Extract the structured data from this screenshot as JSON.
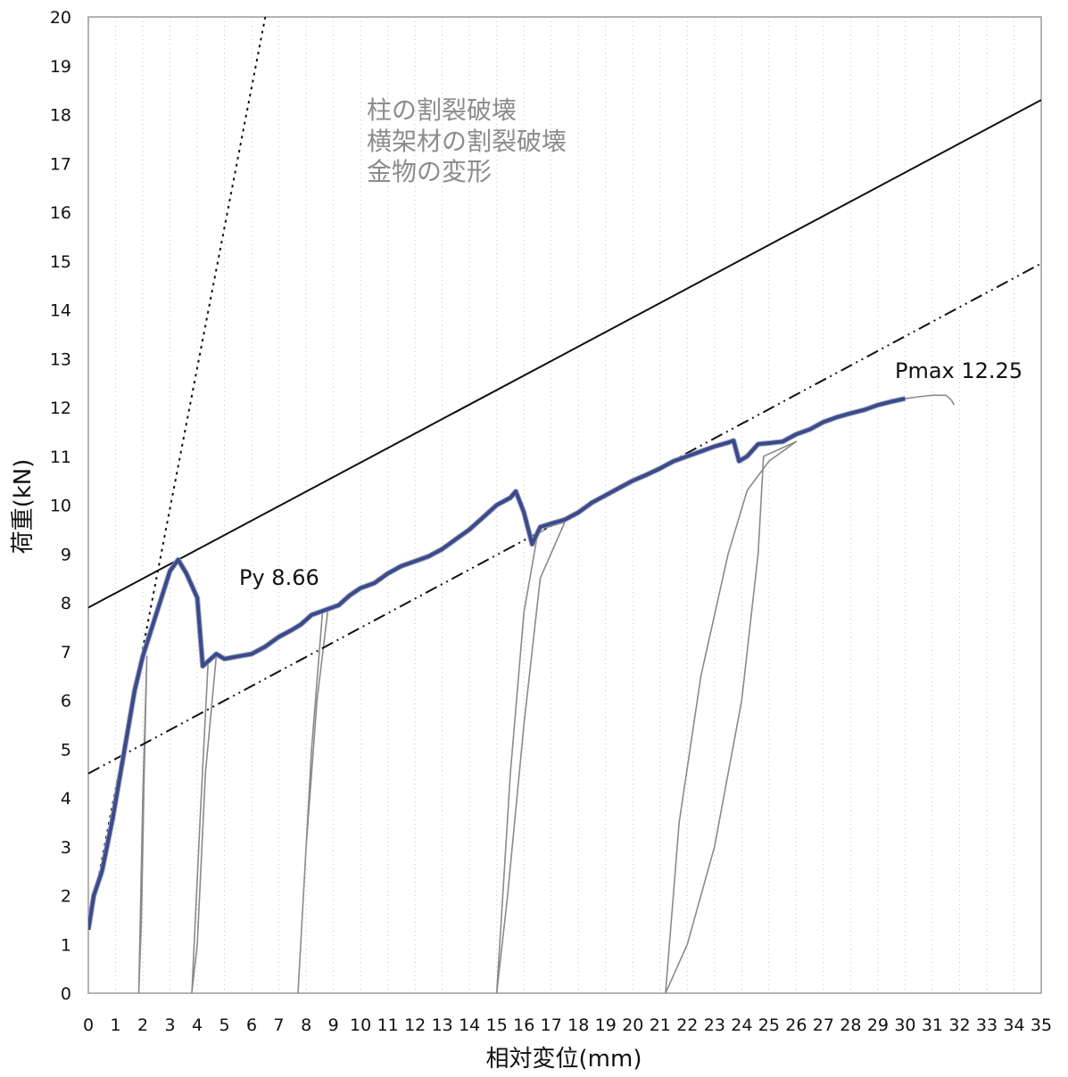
{
  "chart_data": {
    "type": "line",
    "title": "",
    "xlabel": "相対変位(mm)",
    "ylabel": "荷重(kN)",
    "xlim": [
      0,
      35
    ],
    "ylim": [
      0,
      20
    ],
    "x_ticks": [
      "0",
      "1",
      "2",
      "3",
      "4",
      "5",
      "6",
      "7",
      "8",
      "9",
      "10",
      "11",
      "12",
      "13",
      "14",
      "15",
      "16",
      "17",
      "18",
      "19",
      "20",
      "21",
      "22",
      "23",
      "24",
      "25",
      "26",
      "27",
      "28",
      "29",
      "30",
      "31",
      "32",
      "33",
      "34",
      "35"
    ],
    "y_ticks": [
      "0",
      "1",
      "2",
      "3",
      "4",
      "5",
      "6",
      "7",
      "8",
      "9",
      "10",
      "11",
      "12",
      "13",
      "14",
      "15",
      "16",
      "17",
      "18",
      "19",
      "20"
    ],
    "grid": {
      "vertical": true,
      "horizontal": false,
      "style": "dotted"
    },
    "annotations": {
      "py_label": "Py 8.66",
      "pmax_label": "Pmax 12.25",
      "failure_modes": [
        "柱の割裂破壊",
        "横架材の割裂破壊",
        "金物の変形"
      ]
    },
    "series": [
      {
        "role": "envelope",
        "color": "#3a4a8c",
        "points": [
          [
            0,
            1.3
          ],
          [
            0.2,
            2.0
          ],
          [
            0.5,
            2.5
          ],
          [
            0.9,
            3.6
          ],
          [
            1.3,
            4.9
          ],
          [
            1.7,
            6.2
          ],
          [
            2.0,
            6.9
          ],
          [
            2.4,
            7.6
          ],
          [
            2.8,
            8.3
          ],
          [
            3.0,
            8.65
          ],
          [
            3.3,
            8.88
          ],
          [
            3.6,
            8.6
          ],
          [
            4.0,
            8.1
          ],
          [
            4.2,
            6.7
          ],
          [
            4.5,
            6.85
          ],
          [
            4.7,
            6.95
          ],
          [
            5.0,
            6.85
          ],
          [
            5.5,
            6.9
          ],
          [
            6.0,
            6.95
          ],
          [
            6.5,
            7.1
          ],
          [
            7.0,
            7.3
          ],
          [
            7.5,
            7.45
          ],
          [
            7.8,
            7.55
          ],
          [
            8.2,
            7.75
          ],
          [
            8.7,
            7.85
          ],
          [
            9.2,
            7.95
          ],
          [
            9.6,
            8.15
          ],
          [
            10.0,
            8.3
          ],
          [
            10.5,
            8.4
          ],
          [
            11.0,
            8.6
          ],
          [
            11.5,
            8.75
          ],
          [
            12.0,
            8.85
          ],
          [
            12.5,
            8.95
          ],
          [
            13.0,
            9.1
          ],
          [
            13.5,
            9.3
          ],
          [
            14.0,
            9.5
          ],
          [
            14.5,
            9.75
          ],
          [
            15.0,
            10.0
          ],
          [
            15.5,
            10.15
          ],
          [
            15.7,
            10.28
          ],
          [
            16.0,
            9.85
          ],
          [
            16.3,
            9.2
          ],
          [
            16.6,
            9.55
          ],
          [
            17.0,
            9.62
          ],
          [
            17.5,
            9.7
          ],
          [
            18.0,
            9.85
          ],
          [
            18.5,
            10.05
          ],
          [
            19.0,
            10.2
          ],
          [
            19.5,
            10.35
          ],
          [
            20.0,
            10.5
          ],
          [
            20.5,
            10.62
          ],
          [
            21.0,
            10.75
          ],
          [
            21.5,
            10.9
          ],
          [
            22.0,
            11.0
          ],
          [
            22.5,
            11.1
          ],
          [
            23.0,
            11.2
          ],
          [
            23.5,
            11.28
          ],
          [
            23.7,
            11.32
          ],
          [
            23.9,
            10.9
          ],
          [
            24.2,
            11.0
          ],
          [
            24.6,
            11.25
          ],
          [
            25.0,
            11.27
          ],
          [
            25.5,
            11.3
          ],
          [
            26.0,
            11.45
          ],
          [
            26.5,
            11.55
          ],
          [
            27.0,
            11.7
          ],
          [
            27.5,
            11.8
          ],
          [
            28.0,
            11.88
          ],
          [
            28.5,
            11.95
          ],
          [
            29.0,
            12.05
          ],
          [
            29.5,
            12.12
          ],
          [
            30.0,
            12.18
          ]
        ]
      },
      {
        "role": "raw-curve-tail",
        "color": "#8a8a8a",
        "points": [
          [
            30.0,
            12.18
          ],
          [
            30.5,
            12.22
          ],
          [
            31.0,
            12.25
          ],
          [
            31.5,
            12.25
          ],
          [
            31.7,
            12.15
          ],
          [
            31.8,
            12.05
          ]
        ]
      },
      {
        "role": "reload-1",
        "color": "#8a8a8a",
        "points": [
          [
            1.85,
            0
          ],
          [
            2.0,
            4.0
          ],
          [
            2.15,
            6.9
          ],
          [
            2.05,
            4.5
          ],
          [
            1.95,
            1.5
          ],
          [
            1.85,
            0
          ]
        ]
      },
      {
        "role": "reload-2",
        "color": "#8a8a8a",
        "points": [
          [
            3.8,
            0
          ],
          [
            4.1,
            3.5
          ],
          [
            4.4,
            6.8
          ],
          [
            4.7,
            6.9
          ],
          [
            4.3,
            4.5
          ],
          [
            4.0,
            1.0
          ],
          [
            3.8,
            0
          ]
        ]
      },
      {
        "role": "reload-3",
        "color": "#8a8a8a",
        "points": [
          [
            7.7,
            0
          ],
          [
            8.2,
            5.0
          ],
          [
            8.6,
            7.8
          ],
          [
            8.8,
            7.85
          ],
          [
            8.4,
            6.0
          ],
          [
            8.0,
            3.0
          ],
          [
            7.7,
            0
          ]
        ]
      },
      {
        "role": "reload-4",
        "color": "#8a8a8a",
        "points": [
          [
            15.0,
            0
          ],
          [
            15.5,
            4.5
          ],
          [
            16.0,
            7.8
          ],
          [
            16.5,
            9.4
          ],
          [
            16.9,
            9.55
          ],
          [
            17.5,
            9.65
          ],
          [
            16.6,
            8.5
          ],
          [
            16.0,
            5.5
          ],
          [
            15.4,
            2.0
          ],
          [
            15.0,
            0
          ]
        ]
      },
      {
        "role": "reload-5",
        "color": "#8a8a8a",
        "points": [
          [
            21.2,
            0
          ],
          [
            21.7,
            3.5
          ],
          [
            22.5,
            6.5
          ],
          [
            23.5,
            9.0
          ],
          [
            24.2,
            10.3
          ],
          [
            25.0,
            10.9
          ],
          [
            25.5,
            11.1
          ],
          [
            26.0,
            11.3
          ],
          [
            24.8,
            11.0
          ],
          [
            24.6,
            9.0
          ],
          [
            24.0,
            6.0
          ],
          [
            23.0,
            3.0
          ],
          [
            22.0,
            1.0
          ],
          [
            21.2,
            0
          ]
        ]
      },
      {
        "role": "initial-stiffness-line",
        "style": "dotted",
        "color": "#111111",
        "points": [
          [
            0.0,
            1.3
          ],
          [
            6.5,
            20.0
          ]
        ]
      },
      {
        "role": "upper-bound-line",
        "style": "solid",
        "color": "#111111",
        "points": [
          [
            0.0,
            7.9
          ],
          [
            35.0,
            18.3
          ]
        ]
      },
      {
        "role": "secondary-stiffness-line",
        "style": "dash-dot",
        "color": "#111111",
        "points": [
          [
            0.0,
            4.5
          ],
          [
            35.0,
            14.95
          ]
        ]
      }
    ]
  }
}
